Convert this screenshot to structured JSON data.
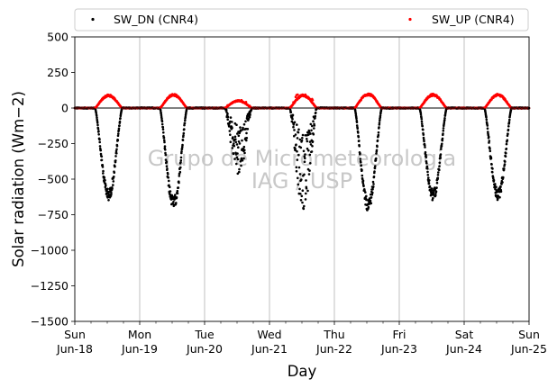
{
  "chart_data": {
    "type": "scatter",
    "xlabel": "Day",
    "ylabel": "Solar radiation (Wm−2)",
    "ylim": [
      -1500,
      500
    ],
    "xlim": [
      "2023-06-18",
      "2023-06-25"
    ],
    "yticks": [
      "500",
      "250",
      "0",
      "−250",
      "−500",
      "−750",
      "−1000",
      "−1250",
      "−1500"
    ],
    "xticks": [
      {
        "day": "Sun",
        "date": "Jun-18"
      },
      {
        "day": "Mon",
        "date": "Jun-19"
      },
      {
        "day": "Tue",
        "date": "Jun-20"
      },
      {
        "day": "Wed",
        "date": "Jun-21"
      },
      {
        "day": "Thu",
        "date": "Jun-22"
      },
      {
        "day": "Fri",
        "date": "Jun-23"
      },
      {
        "day": "Sat",
        "date": "Jun-24"
      },
      {
        "day": "Sun",
        "date": "Jun-25"
      }
    ],
    "grid": "vertical",
    "legend_placement": "top (above plot)",
    "watermark": [
      "Grupo de Micrometeorologia",
      "IAG / USP"
    ],
    "series": [
      {
        "name": "SW_DN (CNR4)",
        "color": "#000000",
        "marker": "dot",
        "daily": [
          {
            "date": "2023-06-18",
            "sunrise_hour": 7.5,
            "sunset_hour": 17.5,
            "min": -650,
            "cloudy": false
          },
          {
            "date": "2023-06-19",
            "sunrise_hour": 7.5,
            "sunset_hour": 17.5,
            "min": -710,
            "cloudy": false
          },
          {
            "date": "2023-06-20",
            "sunrise_hour": 7.5,
            "sunset_hour": 17.5,
            "min": -480,
            "cloudy": true
          },
          {
            "date": "2023-06-21",
            "sunrise_hour": 7.5,
            "sunset_hour": 17.5,
            "min": -730,
            "cloudy": true
          },
          {
            "date": "2023-06-22",
            "sunrise_hour": 7.5,
            "sunset_hour": 17.5,
            "min": -730,
            "cloudy": false
          },
          {
            "date": "2023-06-23",
            "sunrise_hour": 7.5,
            "sunset_hour": 17.5,
            "min": -650,
            "cloudy": false
          },
          {
            "date": "2023-06-24",
            "sunrise_hour": 7.5,
            "sunset_hour": 17.5,
            "min": -650,
            "cloudy": false
          }
        ]
      },
      {
        "name": "SW_UP (CNR4)",
        "color": "#ff0000",
        "marker": "dot",
        "daily": [
          {
            "date": "2023-06-18",
            "sunrise_hour": 7.5,
            "sunset_hour": 17.5,
            "max": 95
          },
          {
            "date": "2023-06-19",
            "sunrise_hour": 7.5,
            "sunset_hour": 17.5,
            "max": 100
          },
          {
            "date": "2023-06-20",
            "sunrise_hour": 7.5,
            "sunset_hour": 17.5,
            "max": 55
          },
          {
            "date": "2023-06-21",
            "sunrise_hour": 7.5,
            "sunset_hour": 17.5,
            "max": 95
          },
          {
            "date": "2023-06-22",
            "sunrise_hour": 7.5,
            "sunset_hour": 17.5,
            "max": 105
          },
          {
            "date": "2023-06-23",
            "sunrise_hour": 7.5,
            "sunset_hour": 17.5,
            "max": 100
          },
          {
            "date": "2023-06-24",
            "sunrise_hour": 7.5,
            "sunset_hour": 17.5,
            "max": 100
          }
        ]
      }
    ]
  }
}
